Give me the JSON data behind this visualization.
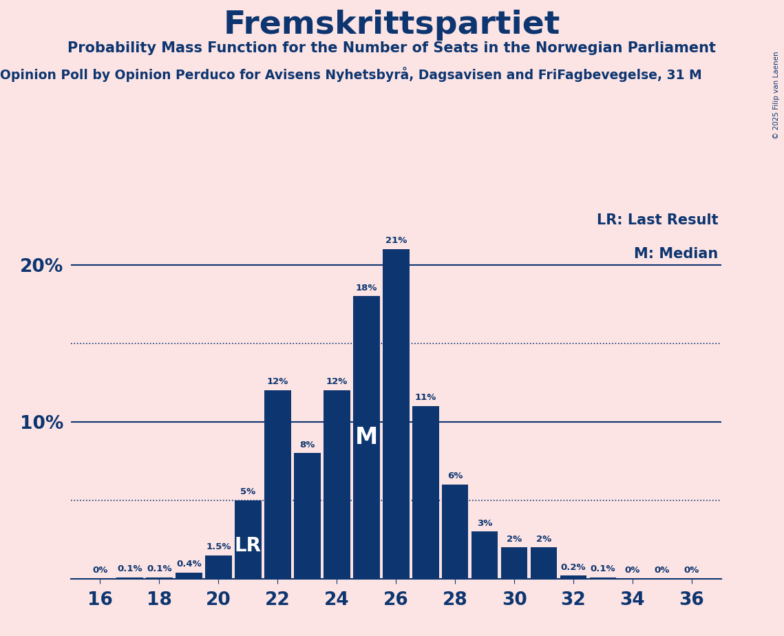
{
  "title": "Fremskrittspartiet",
  "subtitle1": "Probability Mass Function for the Number of Seats in the Norwegian Parliament",
  "subtitle2": "Opinion Poll by Opinion Perduco for Avisens Nyhetsbyrå, Dagsavisen and FriFagbevegelse, 31 M",
  "copyright": "© 2025 Filip van Laenen",
  "legend_lr": "LR: Last Result",
  "legend_m": "M: Median",
  "background_color": "#fce4e4",
  "bar_color": "#0d3570",
  "text_color": "#0d3570",
  "line_color": "#0d3570",
  "seats": [
    16,
    17,
    18,
    19,
    20,
    21,
    22,
    23,
    24,
    25,
    26,
    27,
    28,
    29,
    30,
    31,
    32,
    33,
    34,
    35,
    36
  ],
  "probabilities": [
    0.0,
    0.1,
    0.1,
    0.4,
    1.5,
    5.0,
    12.0,
    8.0,
    12.0,
    18.0,
    21.0,
    11.0,
    6.0,
    3.0,
    2.0,
    2.0,
    0.2,
    0.1,
    0.0,
    0.0,
    0.0
  ],
  "label_texts": [
    "0%",
    "0.1%",
    "0.1%",
    "0.4%",
    "1.5%",
    "5%",
    "12%",
    "8%",
    "12%",
    "18%",
    "21%",
    "11%",
    "6%",
    "3%",
    "2%",
    "2%",
    "0.2%",
    "0.1%",
    "0%",
    "0%",
    "0%"
  ],
  "lr_seat": 21,
  "median_seat": 25,
  "hline_20_pct": 20.0,
  "hline_10_pct": 10.0,
  "dotted_line_5_pct": 5.0,
  "dotted_line_15_pct": 15.0,
  "ylim_max": 23.5,
  "xlim": [
    15.0,
    37.0
  ],
  "xlabel_ticks": [
    16,
    18,
    20,
    22,
    24,
    26,
    28,
    30,
    32,
    34,
    36
  ]
}
